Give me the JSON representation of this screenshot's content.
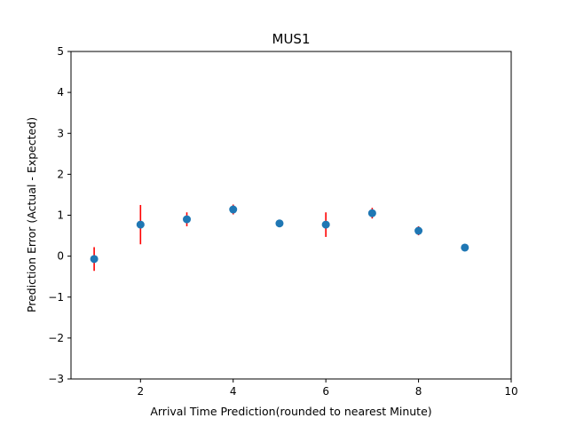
{
  "chart_data": {
    "type": "scatter",
    "title": "MUS1",
    "xlabel": "Arrival Time Prediction(rounded to nearest Minute)",
    "ylabel": "Prediction Error (Actual - Expected)",
    "xlim": [
      0.5,
      10
    ],
    "ylim": [
      -3,
      5
    ],
    "xticks": [
      2,
      4,
      6,
      8,
      10
    ],
    "yticks": [
      -3,
      -2,
      -1,
      0,
      1,
      2,
      3,
      4,
      5
    ],
    "ytick_labels": [
      "−3",
      "−2",
      "−1",
      "0",
      "1",
      "2",
      "3",
      "4",
      "5"
    ],
    "grid": false,
    "points": [
      {
        "x": 1,
        "y": -0.07,
        "err": 0.29
      },
      {
        "x": 2,
        "y": 0.77,
        "err": 0.48
      },
      {
        "x": 3,
        "y": 0.9,
        "err": 0.17
      },
      {
        "x": 4,
        "y": 1.14,
        "err": 0.12
      },
      {
        "x": 5,
        "y": 0.8,
        "err": 0
      },
      {
        "x": 6,
        "y": 0.77,
        "err": 0.3
      },
      {
        "x": 7,
        "y": 1.05,
        "err": 0.13
      },
      {
        "x": 8,
        "y": 0.62,
        "err": 0.11
      },
      {
        "x": 9,
        "y": 0.21,
        "err": 0
      }
    ],
    "colors": {
      "marker": "#1f77b4",
      "errorbar": "#ff0000"
    }
  }
}
